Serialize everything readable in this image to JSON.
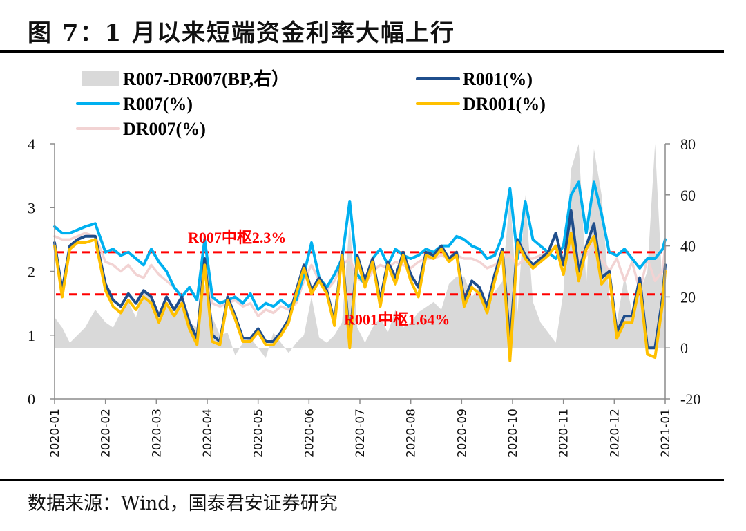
{
  "header": {
    "title": "图 7：1 月以来短端资金利率大幅上行"
  },
  "footer": {
    "source": "数据来源：Wind，国泰君安证券研究"
  },
  "chart_data": {
    "type": "line",
    "title": "图 7：1 月以来短端资金利率大幅上行",
    "xlabel": "",
    "ylabel_left": "%",
    "ylabel_right": "BP",
    "ylim_left": [
      0,
      4
    ],
    "ylim_right": [
      -20,
      80
    ],
    "yticks_left": [
      "0",
      "1",
      "2",
      "3",
      "4"
    ],
    "yticks_right": [
      "-20",
      "0",
      "20",
      "40",
      "60",
      "80"
    ],
    "xticks": [
      "2020-01",
      "2020-02",
      "2020-03",
      "2020-04",
      "2020-05",
      "2020-06",
      "2020-07",
      "2020-08",
      "2020-09",
      "2020-10",
      "2020-11",
      "2020-12",
      "2021-01"
    ],
    "x_unit": "months since 2020-01",
    "legend": [
      {
        "key": "spread",
        "label": "R007-DR007(BP,右）",
        "type": "area",
        "color": "#d9d9d9"
      },
      {
        "key": "r001",
        "label": "R001(%)",
        "type": "line",
        "color": "#1f4e8c"
      },
      {
        "key": "r007",
        "label": "R007(%)",
        "type": "line",
        "color": "#00b0f0"
      },
      {
        "key": "dr001",
        "label": "DR001(%)",
        "type": "line",
        "color": "#ffc000"
      },
      {
        "key": "dr007",
        "label": "DR007(%)",
        "type": "line",
        "color": "#f2d3d3"
      }
    ],
    "legend_position": "top",
    "reference_lines": [
      {
        "label": "R007中枢2.3%",
        "value": 2.3,
        "axis": "left",
        "color": "#ff0000",
        "style": "dashed"
      },
      {
        "label": "R001中枢1.64%",
        "value": 1.64,
        "axis": "left",
        "color": "#ff0000",
        "style": "dashed"
      }
    ],
    "x": [
      0,
      0.15,
      0.3,
      0.45,
      0.6,
      0.8,
      1.0,
      1.15,
      1.3,
      1.45,
      1.6,
      1.75,
      1.9,
      2.05,
      2.2,
      2.35,
      2.5,
      2.65,
      2.8,
      2.95,
      3.1,
      3.25,
      3.4,
      3.55,
      3.7,
      3.85,
      4.0,
      4.15,
      4.3,
      4.45,
      4.6,
      4.75,
      4.9,
      5.05,
      5.2,
      5.35,
      5.5,
      5.65,
      5.8,
      5.95,
      6.1,
      6.25,
      6.4,
      6.55,
      6.7,
      6.85,
      7.0,
      7.15,
      7.3,
      7.45,
      7.6,
      7.75,
      7.9,
      8.05,
      8.2,
      8.35,
      8.5,
      8.65,
      8.8,
      8.95,
      9.1,
      9.25,
      9.4,
      9.55,
      9.7,
      9.85,
      10.0,
      10.15,
      10.3,
      10.45,
      10.6,
      10.75,
      10.9,
      11.05,
      11.2,
      11.35,
      11.5,
      11.65,
      11.8,
      11.95,
      12.0
    ],
    "series": [
      {
        "name": "R007(%)",
        "key": "r007",
        "axis": "left",
        "values": [
          2.7,
          2.6,
          2.6,
          2.65,
          2.7,
          2.75,
          2.3,
          2.35,
          2.25,
          2.3,
          2.2,
          2.1,
          2.35,
          2.15,
          2.0,
          1.75,
          1.6,
          1.75,
          1.55,
          2.5,
          1.6,
          1.5,
          1.55,
          1.6,
          1.5,
          1.65,
          1.4,
          1.5,
          1.45,
          1.55,
          1.45,
          1.55,
          1.95,
          2.45,
          1.9,
          1.75,
          1.95,
          2.2,
          3.1,
          1.95,
          1.8,
          2.2,
          2.35,
          2.1,
          2.35,
          2.25,
          2.2,
          2.25,
          2.35,
          2.3,
          2.4,
          2.4,
          2.55,
          2.5,
          2.4,
          2.35,
          2.2,
          2.25,
          2.55,
          3.3,
          2.2,
          3.1,
          2.5,
          2.4,
          2.3,
          2.2,
          2.4,
          3.2,
          3.4,
          2.6,
          3.4,
          2.9,
          2.3,
          2.25,
          2.35,
          2.2,
          2.05,
          2.2,
          2.2,
          2.35,
          2.5
        ]
      },
      {
        "name": "R001(%)",
        "key": "r001",
        "axis": "left",
        "values": [
          2.45,
          1.7,
          2.4,
          2.5,
          2.55,
          2.55,
          1.8,
          1.55,
          1.45,
          1.65,
          1.5,
          1.7,
          1.6,
          1.3,
          1.6,
          1.4,
          1.6,
          1.2,
          0.95,
          2.2,
          1.0,
          0.9,
          1.6,
          1.3,
          0.95,
          0.95,
          1.1,
          0.9,
          0.9,
          1.05,
          1.25,
          1.7,
          2.1,
          1.7,
          1.9,
          1.7,
          1.2,
          2.3,
          0.9,
          2.25,
          1.85,
          2.2,
          1.55,
          2.15,
          1.9,
          2.3,
          1.95,
          1.75,
          2.3,
          2.25,
          2.4,
          2.2,
          2.3,
          1.55,
          1.85,
          1.75,
          1.45,
          1.95,
          2.35,
          0.85,
          2.5,
          2.25,
          2.1,
          2.2,
          2.3,
          2.6,
          2.1,
          2.95,
          2.0,
          2.4,
          2.75,
          1.9,
          2.0,
          1.05,
          1.3,
          1.3,
          1.9,
          0.8,
          0.8,
          1.6,
          2.1
        ]
      },
      {
        "name": "DR001(%)",
        "key": "dr001",
        "axis": "left",
        "values": [
          2.4,
          1.6,
          2.35,
          2.45,
          2.45,
          2.5,
          1.7,
          1.45,
          1.35,
          1.55,
          1.4,
          1.6,
          1.5,
          1.2,
          1.5,
          1.3,
          1.5,
          1.1,
          0.85,
          2.1,
          0.9,
          0.85,
          1.55,
          1.25,
          0.9,
          0.9,
          1.05,
          0.85,
          0.85,
          1.0,
          1.2,
          1.65,
          2.05,
          1.65,
          1.85,
          1.65,
          1.15,
          2.25,
          0.8,
          2.2,
          1.75,
          2.15,
          1.45,
          2.1,
          1.8,
          2.25,
          1.85,
          1.6,
          2.25,
          2.2,
          2.35,
          2.15,
          2.25,
          1.45,
          1.75,
          1.65,
          1.35,
          1.85,
          2.3,
          0.6,
          2.45,
          2.2,
          2.05,
          2.15,
          2.25,
          2.4,
          1.95,
          2.6,
          1.85,
          2.35,
          2.55,
          1.8,
          1.95,
          0.95,
          1.2,
          1.2,
          1.8,
          0.7,
          0.65,
          1.5,
          2.0
        ]
      },
      {
        "name": "DR007(%)",
        "key": "dr007",
        "axis": "left",
        "values": [
          2.55,
          2.5,
          2.5,
          2.55,
          2.6,
          2.55,
          2.15,
          2.1,
          2.0,
          2.1,
          1.95,
          1.9,
          2.1,
          1.95,
          1.85,
          1.75,
          1.6,
          1.75,
          1.55,
          2.1,
          1.5,
          1.45,
          1.5,
          1.55,
          1.45,
          1.5,
          1.3,
          1.4,
          1.35,
          1.45,
          1.4,
          1.5,
          1.85,
          2.1,
          1.85,
          1.7,
          1.85,
          2.1,
          2.2,
          1.9,
          1.8,
          2.0,
          2.1,
          2.05,
          2.15,
          2.1,
          2.05,
          2.15,
          2.2,
          2.2,
          2.25,
          2.2,
          2.25,
          2.2,
          2.2,
          2.15,
          2.05,
          2.1,
          2.2,
          2.25,
          2.1,
          2.2,
          2.2,
          2.25,
          2.3,
          2.4,
          2.15,
          2.5,
          2.2,
          2.25,
          2.45,
          2.2,
          2.0,
          2.2,
          1.85,
          2.15,
          1.7,
          2.2,
          1.85,
          2.0,
          2.4
        ]
      },
      {
        "name": "R007-DR007(BP,右）",
        "key": "spread",
        "axis": "right",
        "values": [
          12,
          8,
          2,
          5,
          8,
          15,
          10,
          8,
          14,
          18,
          12,
          22,
          20,
          10,
          18,
          14,
          22,
          10,
          8,
          25,
          12,
          5,
          6,
          -3,
          2,
          4,
          0,
          -4,
          6,
          2,
          -2,
          2,
          5,
          20,
          4,
          2,
          5,
          10,
          50,
          8,
          2,
          8,
          12,
          6,
          15,
          8,
          10,
          14,
          16,
          18,
          15,
          25,
          28,
          28,
          20,
          24,
          16,
          22,
          26,
          60,
          14,
          60,
          18,
          10,
          6,
          2,
          22,
          70,
          80,
          25,
          78,
          60,
          20,
          10,
          28,
          14,
          22,
          30,
          80,
          22,
          10
        ]
      }
    ]
  }
}
